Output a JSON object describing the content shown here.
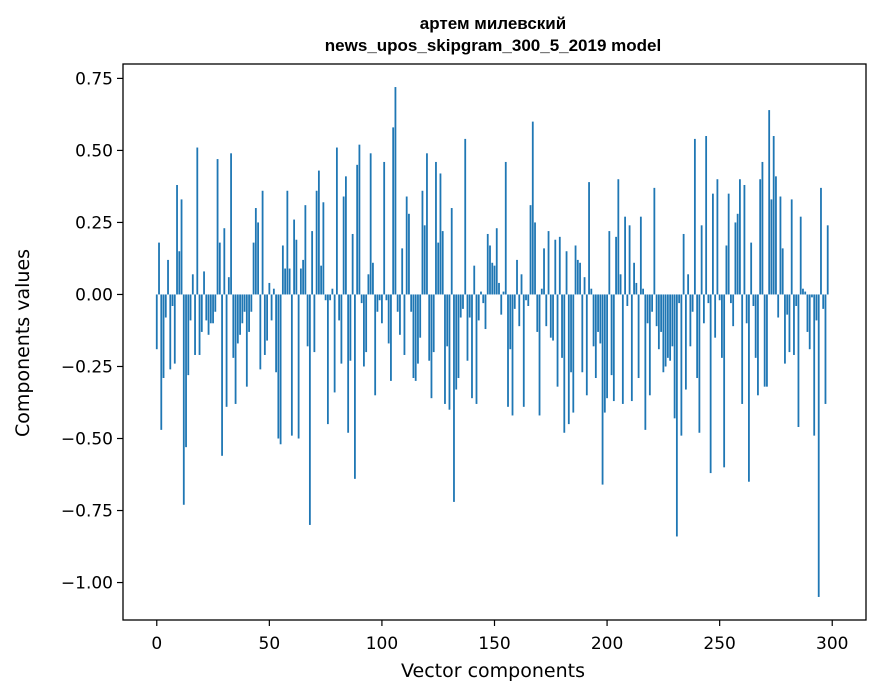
{
  "chart_data": {
    "type": "bar",
    "title_line1": "артем милевский",
    "title_line2": "news_upos_skipgram_300_5_2019 model",
    "xlabel": "Vector components",
    "ylabel": "Components values",
    "xlim": [
      -15,
      315
    ],
    "ylim": [
      -1.13,
      0.8
    ],
    "xticks": [
      0,
      50,
      100,
      150,
      200,
      250,
      300
    ],
    "xtick_labels": [
      "0",
      "50",
      "100",
      "150",
      "200",
      "250",
      "300"
    ],
    "yticks": [
      0.75,
      0.5,
      0.25,
      0.0,
      -0.25,
      -0.5,
      -0.75,
      -1.0
    ],
    "ytick_labels": [
      "0.75",
      "0.50",
      "0.25",
      "0.00",
      "−0.25",
      "−0.50",
      "−0.75",
      "−1.00"
    ],
    "grid": false,
    "bar_color": "#1f77b4",
    "x_start": 0,
    "values": [
      -0.19,
      0.18,
      -0.47,
      -0.29,
      -0.08,
      0.12,
      -0.26,
      -0.04,
      -0.24,
      0.38,
      0.15,
      0.33,
      -0.73,
      -0.53,
      -0.28,
      -0.09,
      0.07,
      -0.21,
      0.51,
      -0.21,
      -0.13,
      0.08,
      -0.09,
      -0.14,
      -0.1,
      -0.1,
      -0.06,
      0.47,
      0.18,
      -0.56,
      0.23,
      -0.39,
      0.06,
      0.49,
      -0.22,
      -0.38,
      -0.17,
      -0.14,
      -0.1,
      -0.06,
      -0.32,
      -0.13,
      -0.06,
      0.18,
      0.3,
      0.25,
      -0.26,
      0.36,
      -0.21,
      -0.16,
      0.04,
      -0.09,
      0.02,
      -0.27,
      -0.5,
      -0.52,
      0.17,
      0.09,
      0.36,
      0.09,
      -0.49,
      0.26,
      0.19,
      -0.5,
      0.09,
      0.12,
      0.31,
      -0.18,
      -0.8,
      0.22,
      -0.2,
      0.36,
      0.43,
      0.1,
      0.32,
      -0.02,
      -0.45,
      -0.02,
      0.02,
      -0.34,
      0.51,
      -0.09,
      -0.24,
      0.34,
      0.41,
      -0.48,
      -0.23,
      0.21,
      -0.64,
      0.45,
      0.52,
      -0.03,
      -0.25,
      -0.2,
      0.07,
      0.49,
      0.11,
      -0.35,
      -0.06,
      -0.02,
      -0.1,
      0.46,
      -0.02,
      -0.17,
      -0.3,
      0.58,
      0.72,
      -0.06,
      -0.14,
      0.16,
      -0.21,
      0.34,
      0.28,
      -0.06,
      -0.29,
      -0.3,
      -0.24,
      -0.15,
      0.36,
      0.24,
      0.49,
      -0.23,
      -0.36,
      -0.2,
      0.46,
      0.18,
      0.42,
      0.22,
      -0.38,
      -0.18,
      -0.4,
      0.3,
      -0.72,
      -0.33,
      -0.29,
      -0.08,
      -0.05,
      0.54,
      -0.23,
      -0.08,
      -0.36,
      0.1,
      -0.38,
      -0.09,
      0.01,
      -0.03,
      -0.12,
      0.21,
      0.17,
      0.11,
      0.1,
      0.23,
      0.04,
      -0.07,
      0.01,
      0.46,
      -0.39,
      -0.19,
      -0.42,
      -0.05,
      0.12,
      -0.11,
      0.07,
      -0.39,
      -0.02,
      -0.04,
      0.31,
      0.6,
      0.25,
      -0.13,
      -0.42,
      0.02,
      0.16,
      -0.11,
      0.22,
      -0.15,
      -0.16,
      0.19,
      -0.32,
      0.2,
      -0.22,
      -0.48,
      0.15,
      -0.45,
      -0.27,
      -0.41,
      0.17,
      0.12,
      0.11,
      -0.27,
      0.06,
      -0.35,
      0.39,
      0.02,
      -0.18,
      -0.29,
      -0.13,
      -0.17,
      -0.66,
      -0.41,
      -0.36,
      0.22,
      -0.28,
      -0.37,
      0.2,
      0.4,
      0.07,
      -0.38,
      0.27,
      -0.04,
      0.24,
      -0.37,
      0.11,
      0.04,
      -0.29,
      0.27,
      0.02,
      -0.47,
      -0.1,
      -0.35,
      -0.06,
      0.37,
      -0.11,
      -0.19,
      -0.13,
      -0.27,
      -0.25,
      -0.22,
      -0.23,
      -0.18,
      -0.43,
      -0.84,
      -0.03,
      -0.49,
      0.21,
      -0.33,
      0.07,
      -0.18,
      -0.06,
      0.54,
      -0.29,
      -0.48,
      0.24,
      -0.1,
      0.55,
      -0.03,
      -0.62,
      0.35,
      -0.15,
      0.4,
      -0.02,
      -0.22,
      -0.6,
      0.17,
      0.35,
      -0.03,
      -0.11,
      0.25,
      0.28,
      0.4,
      -0.38,
      0.38,
      -0.1,
      -0.65,
      0.18,
      -0.04,
      -0.22,
      -0.35,
      0.4,
      0.46,
      -0.32,
      -0.32,
      0.64,
      0.33,
      0.55,
      0.41,
      -0.08,
      0.34,
      0.16,
      -0.24,
      -0.07,
      -0.2,
      0.33,
      -0.21,
      -0.04,
      -0.46,
      0.27,
      0.02,
      0.01,
      -0.13,
      -0.19,
      -0.01,
      -0.49,
      -0.09,
      -1.05,
      0.37,
      -0.05,
      -0.38,
      0.24
    ]
  }
}
